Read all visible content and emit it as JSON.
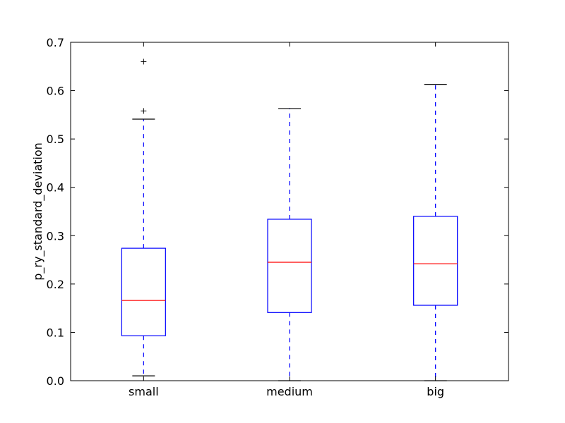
{
  "chart_data": {
    "type": "boxplot",
    "title": "",
    "xlabel": "",
    "ylabel": "p_ry_standard_deviation",
    "ylim": [
      0.0,
      0.7
    ],
    "yticks": [
      "0.0",
      "0.1",
      "0.2",
      "0.3",
      "0.4",
      "0.5",
      "0.6",
      "0.7"
    ],
    "categories": [
      "small",
      "medium",
      "big"
    ],
    "boxes": [
      {
        "category": "small",
        "whisker_low": 0.01,
        "q1": 0.093,
        "median": 0.166,
        "q3": 0.274,
        "whisker_high": 0.541,
        "outliers": [
          0.558,
          0.66
        ]
      },
      {
        "category": "medium",
        "whisker_low": 0.0,
        "q1": 0.141,
        "median": 0.245,
        "q3": 0.334,
        "whisker_high": 0.563,
        "outliers": []
      },
      {
        "category": "big",
        "whisker_low": 0.0,
        "q1": 0.156,
        "median": 0.242,
        "q3": 0.34,
        "whisker_high": 0.613,
        "outliers": []
      }
    ],
    "grid": false,
    "colors": {
      "box": "#0000ff",
      "median": "#ff0000",
      "whisker": "#0000ff",
      "cap": "#000000",
      "outlier": "#000000"
    }
  }
}
